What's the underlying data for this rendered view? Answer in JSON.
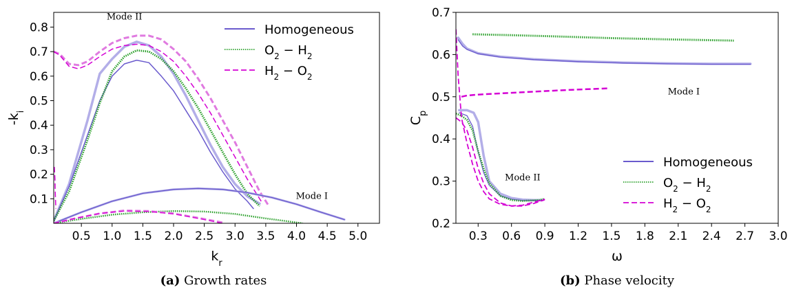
{
  "colors": {
    "homogeneous": "#6a5acd",
    "homogeneous_light": "#b3aee8",
    "o2_h2": "#2ca02c",
    "h2_o2": "#d400d4",
    "h2_o2_light": "#e07ae0"
  },
  "chart_data": [
    {
      "id": "a",
      "type": "line",
      "caption_label": "(a)",
      "caption_text": "Growth rates",
      "xlabel": "k",
      "xlabel_sub": "r",
      "ylabel": "-k",
      "ylabel_sub": "i",
      "xlim": [
        0.05,
        5.35
      ],
      "ylim": [
        0.0,
        0.86
      ],
      "xticks": [
        0.5,
        1.0,
        1.5,
        2.0,
        2.5,
        3.0,
        3.5,
        4.0,
        4.5,
        5.0
      ],
      "xtick_labels": [
        "0.5",
        "1.0",
        "1.5",
        "2.0",
        "2.5",
        "3.0",
        "3.5",
        "4.0",
        "4.5",
        "5.0"
      ],
      "yticks": [
        0.1,
        0.2,
        0.3,
        0.4,
        0.5,
        0.6,
        0.7,
        0.8
      ],
      "ytick_labels": [
        "0.1",
        "0.2",
        "0.3",
        "0.4",
        "0.5",
        "0.6",
        "0.7",
        "0.8"
      ],
      "legend_position": "top-right",
      "legend": [
        {
          "label": "Homogeneous",
          "style": "solid",
          "color_key": "homogeneous"
        },
        {
          "label": "O",
          "sub1": "2",
          "mid": " − H",
          "sub2": "2",
          "style": "dotted",
          "color_key": "o2_h2"
        },
        {
          "label": "H",
          "sub1": "2",
          "mid": " − O",
          "sub2": "2",
          "style": "dashed",
          "color_key": "h2_o2"
        }
      ],
      "annotations": [
        {
          "text": "Mode II",
          "x": 1.2,
          "y": 0.83
        },
        {
          "text": "Mode I",
          "x": 4.25,
          "y": 0.1
        }
      ],
      "series": [
        {
          "color_key": "homogeneous_light",
          "style": "solid",
          "width": 3.5,
          "x": [
            0.05,
            0.3,
            0.6,
            0.8,
            1.0,
            1.2,
            1.4,
            1.6,
            1.8,
            2.0,
            2.2,
            2.4,
            2.6,
            2.8,
            3.0,
            3.2,
            3.4
          ],
          "y": [
            0.01,
            0.16,
            0.42,
            0.61,
            0.67,
            0.72,
            0.74,
            0.725,
            0.68,
            0.61,
            0.52,
            0.42,
            0.32,
            0.23,
            0.16,
            0.11,
            0.08
          ]
        },
        {
          "color_key": "homogeneous",
          "style": "solid",
          "width": 1.5,
          "x": [
            0.05,
            0.3,
            0.6,
            0.8,
            1.0,
            1.2,
            1.4,
            1.6,
            1.8,
            2.0,
            2.2,
            2.4,
            2.6,
            2.8,
            3.0,
            3.2,
            3.3
          ],
          "y": [
            0.01,
            0.15,
            0.36,
            0.5,
            0.6,
            0.65,
            0.665,
            0.655,
            0.6,
            0.54,
            0.46,
            0.38,
            0.29,
            0.21,
            0.14,
            0.09,
            0.06
          ]
        },
        {
          "color_key": "o2_h2",
          "style": "dotted",
          "width": 3,
          "x": [
            0.05,
            0.3,
            0.6,
            0.8,
            1.0,
            1.2,
            1.4,
            1.6,
            1.8,
            2.0,
            2.2,
            2.4,
            2.6,
            2.8,
            3.0,
            3.2,
            3.4
          ],
          "y": [
            0.01,
            0.13,
            0.34,
            0.49,
            0.62,
            0.68,
            0.705,
            0.7,
            0.67,
            0.62,
            0.55,
            0.47,
            0.38,
            0.29,
            0.2,
            0.12,
            0.07
          ]
        },
        {
          "color_key": "h2_o2_light",
          "style": "dashed",
          "width": 3,
          "x": [
            0.05,
            0.15,
            0.3,
            0.45,
            0.6,
            0.8,
            1.0,
            1.2,
            1.4,
            1.6,
            1.8,
            2.0,
            2.2,
            2.4,
            2.6,
            2.8,
            3.0,
            3.2,
            3.4,
            3.55
          ],
          "y": [
            0.7,
            0.69,
            0.65,
            0.645,
            0.66,
            0.7,
            0.735,
            0.755,
            0.765,
            0.765,
            0.75,
            0.71,
            0.66,
            0.59,
            0.51,
            0.42,
            0.33,
            0.23,
            0.13,
            0.07
          ]
        },
        {
          "color_key": "h2_o2",
          "style": "dashed",
          "width": 1.5,
          "x": [
            0.05,
            0.15,
            0.3,
            0.45,
            0.6,
            0.8,
            1.0,
            1.2,
            1.4,
            1.6,
            1.8,
            2.0,
            2.2,
            2.4,
            2.6,
            2.8,
            3.0,
            3.2,
            3.45
          ],
          "y": [
            0.7,
            0.685,
            0.64,
            0.63,
            0.645,
            0.68,
            0.71,
            0.725,
            0.73,
            0.725,
            0.7,
            0.66,
            0.6,
            0.53,
            0.45,
            0.36,
            0.27,
            0.18,
            0.08
          ]
        },
        {
          "color_key": "h2_o2",
          "style": "dashed",
          "width": 1.5,
          "x": [
            0.06,
            0.07,
            0.075,
            0.08,
            0.085
          ],
          "y": [
            0.23,
            0.18,
            0.13,
            0.09,
            0.06
          ]
        },
        {
          "color_key": "homogeneous_light",
          "style": "solid",
          "width": 3,
          "x": [
            0.05,
            0.5,
            1.0,
            1.5,
            2.0,
            2.4,
            2.8,
            3.2,
            3.6,
            4.0,
            4.4,
            4.78
          ],
          "y": [
            0.0,
            0.045,
            0.09,
            0.122,
            0.138,
            0.142,
            0.138,
            0.125,
            0.105,
            0.078,
            0.045,
            0.015
          ]
        },
        {
          "color_key": "homogeneous",
          "style": "solid",
          "width": 1.3,
          "x": [
            0.05,
            0.5,
            1.0,
            1.5,
            2.0,
            2.4,
            2.8,
            3.2,
            3.6,
            4.0,
            4.4,
            4.78
          ],
          "y": [
            0.0,
            0.045,
            0.09,
            0.122,
            0.138,
            0.142,
            0.138,
            0.125,
            0.105,
            0.078,
            0.045,
            0.015
          ]
        },
        {
          "color_key": "o2_h2",
          "style": "dotted",
          "width": 2.5,
          "x": [
            0.05,
            0.5,
            1.0,
            1.5,
            2.0,
            2.5,
            3.0,
            3.5,
            4.1
          ],
          "y": [
            0.0,
            0.018,
            0.035,
            0.045,
            0.05,
            0.048,
            0.038,
            0.02,
            0.0
          ]
        },
        {
          "color_key": "h2_o2_light",
          "style": "dashed",
          "width": 2.8,
          "x": [
            0.05,
            0.4,
            0.8,
            1.2,
            1.6,
            2.0,
            2.4,
            2.8
          ],
          "y": [
            0.0,
            0.02,
            0.04,
            0.052,
            0.05,
            0.04,
            0.022,
            0.003
          ]
        },
        {
          "color_key": "h2_o2",
          "style": "dashed",
          "width": 1.3,
          "x": [
            0.05,
            0.4,
            0.8,
            1.2,
            1.6,
            2.0,
            2.4,
            2.8
          ],
          "y": [
            0.0,
            0.02,
            0.04,
            0.05,
            0.048,
            0.038,
            0.02,
            0.0
          ]
        }
      ]
    },
    {
      "id": "b",
      "type": "line",
      "caption_label": "(b)",
      "caption_text": "Phase velocity",
      "xlabel": "ω",
      "ylabel": "C",
      "ylabel_sub": "p",
      "xlim": [
        0.1,
        3.0
      ],
      "ylim": [
        0.2,
        0.7
      ],
      "xticks": [
        0.3,
        0.6,
        0.9,
        1.2,
        1.5,
        1.8,
        2.1,
        2.4,
        2.7,
        3.0
      ],
      "xtick_labels": [
        "0.3",
        "0.6",
        "0.9",
        "1.2",
        "1.5",
        "1.8",
        "2.1",
        "2.4",
        "2.7",
        "3.0"
      ],
      "yticks": [
        0.2,
        0.3,
        0.4,
        0.5,
        0.6,
        0.7
      ],
      "ytick_labels": [
        "0.2",
        "0.3",
        "0.4",
        "0.5",
        "0.6",
        "0.7"
      ],
      "legend_position": "lower-right",
      "legend": [
        {
          "label": "Homogeneous",
          "style": "solid",
          "color_key": "homogeneous"
        },
        {
          "label": "O",
          "sub1": "2",
          "mid": " − H",
          "sub2": "2",
          "style": "dotted",
          "color_key": "o2_h2"
        },
        {
          "label": "H",
          "sub1": "2",
          "mid": " − O",
          "sub2": "2",
          "style": "dashed",
          "color_key": "h2_o2"
        }
      ],
      "annotations": [
        {
          "text": "Mode I",
          "x": 2.15,
          "y": 0.505
        },
        {
          "text": "Mode II",
          "x": 0.7,
          "y": 0.302
        }
      ],
      "series": [
        {
          "color_key": "homogeneous_light",
          "style": "solid",
          "width": 3.5,
          "x": [
            0.12,
            0.16,
            0.2,
            0.3,
            0.5,
            0.8,
            1.2,
            1.6,
            2.0,
            2.4,
            2.75
          ],
          "y": [
            0.64,
            0.625,
            0.614,
            0.603,
            0.595,
            0.589,
            0.584,
            0.581,
            0.579,
            0.578,
            0.578
          ]
        },
        {
          "color_key": "homogeneous",
          "style": "solid",
          "width": 1.3,
          "x": [
            0.12,
            0.16,
            0.2,
            0.3,
            0.5,
            0.8,
            1.2,
            1.6,
            2.0,
            2.4,
            2.75
          ],
          "y": [
            0.635,
            0.62,
            0.612,
            0.602,
            0.594,
            0.588,
            0.583,
            0.58,
            0.578,
            0.577,
            0.577
          ]
        },
        {
          "color_key": "o2_h2",
          "style": "dotted",
          "width": 3,
          "x": [
            0.25,
            0.6,
            1.0,
            1.5,
            2.0,
            2.6
          ],
          "y": [
            0.648,
            0.646,
            0.643,
            0.639,
            0.636,
            0.633
          ]
        },
        {
          "color_key": "h2_o2",
          "style": "dashed",
          "width": 2.5,
          "x": [
            0.15,
            0.2,
            0.3,
            0.5,
            0.8,
            1.1,
            1.48
          ],
          "y": [
            0.5,
            0.503,
            0.505,
            0.508,
            0.512,
            0.516,
            0.52
          ]
        },
        {
          "color_key": "homogeneous_light",
          "style": "solid",
          "width": 3.5,
          "x": [
            0.13,
            0.2,
            0.26,
            0.3,
            0.35,
            0.4,
            0.5,
            0.6,
            0.7,
            0.8,
            0.88
          ],
          "y": [
            0.468,
            0.468,
            0.462,
            0.44,
            0.36,
            0.3,
            0.27,
            0.26,
            0.256,
            0.255,
            0.255
          ]
        },
        {
          "color_key": "homogeneous",
          "style": "solid",
          "width": 1.3,
          "x": [
            0.13,
            0.2,
            0.25,
            0.3,
            0.35,
            0.4,
            0.5,
            0.6,
            0.7,
            0.8,
            0.88
          ],
          "y": [
            0.462,
            0.455,
            0.43,
            0.37,
            0.32,
            0.29,
            0.265,
            0.257,
            0.254,
            0.254,
            0.254
          ]
        },
        {
          "color_key": "o2_h2",
          "style": "dotted",
          "width": 2.8,
          "x": [
            0.1,
            0.15,
            0.2,
            0.25,
            0.3,
            0.35,
            0.4,
            0.5,
            0.6,
            0.7,
            0.85,
            0.9
          ],
          "y": [
            0.46,
            0.455,
            0.445,
            0.42,
            0.37,
            0.33,
            0.295,
            0.265,
            0.255,
            0.253,
            0.255,
            0.258
          ]
        },
        {
          "color_key": "h2_o2",
          "style": "dashed",
          "width": 1.8,
          "x": [
            0.1,
            0.15,
            0.2,
            0.25,
            0.3,
            0.35,
            0.4,
            0.5,
            0.6,
            0.7,
            0.8,
            0.9
          ],
          "y": [
            0.45,
            0.44,
            0.42,
            0.38,
            0.33,
            0.295,
            0.27,
            0.248,
            0.241,
            0.241,
            0.247,
            0.256
          ]
        },
        {
          "color_key": "h2_o2",
          "style": "dashed",
          "width": 1.8,
          "x": [
            0.1,
            0.12,
            0.15,
            0.2,
            0.25,
            0.3,
            0.35,
            0.4,
            0.5,
            0.6,
            0.7,
            0.8,
            0.9
          ],
          "y": [
            0.66,
            0.55,
            0.45,
            0.39,
            0.34,
            0.3,
            0.275,
            0.258,
            0.245,
            0.241,
            0.243,
            0.25,
            0.257
          ]
        }
      ]
    }
  ]
}
